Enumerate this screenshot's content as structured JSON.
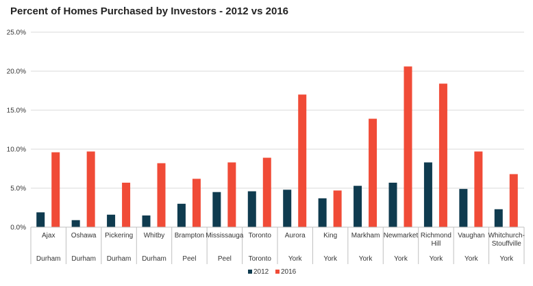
{
  "chart_data": {
    "type": "bar",
    "title": "Percent of Homes Purchased by Investors - 2012 vs 2016",
    "xlabel": "",
    "ylabel": "",
    "ylim": [
      0,
      25
    ],
    "yticks": [
      "0.0%",
      "5.0%",
      "10.0%",
      "15.0%",
      "20.0%",
      "25.0%"
    ],
    "ytick_values": [
      0,
      5,
      10,
      15,
      20,
      25
    ],
    "grid": true,
    "legend_position": "bottom",
    "categories": [
      {
        "lines": [
          "Ajax"
        ],
        "group": "Durham"
      },
      {
        "lines": [
          "Oshawa"
        ],
        "group": "Durham"
      },
      {
        "lines": [
          "Pickering"
        ],
        "group": "Durham"
      },
      {
        "lines": [
          "Whitby"
        ],
        "group": "Durham"
      },
      {
        "lines": [
          "Brampton"
        ],
        "group": "Peel"
      },
      {
        "lines": [
          "Mississauga"
        ],
        "group": "Peel"
      },
      {
        "lines": [
          "Toronto"
        ],
        "group": "Toronto"
      },
      {
        "lines": [
          "Aurora"
        ],
        "group": "York"
      },
      {
        "lines": [
          "King"
        ],
        "group": "York"
      },
      {
        "lines": [
          "Markham"
        ],
        "group": "York"
      },
      {
        "lines": [
          "Newmarket"
        ],
        "group": "York"
      },
      {
        "lines": [
          "Richmond",
          "Hill"
        ],
        "group": "York"
      },
      {
        "lines": [
          "Vaughan"
        ],
        "group": "York"
      },
      {
        "lines": [
          "Whitchurch-",
          "Stouffville"
        ],
        "group": "York"
      }
    ],
    "series": [
      {
        "name": "2012",
        "color": "#0f3b4f",
        "values": [
          1.9,
          0.9,
          1.6,
          1.5,
          3.0,
          4.5,
          4.6,
          4.8,
          3.7,
          5.3,
          5.7,
          8.3,
          4.9,
          2.3
        ]
      },
      {
        "name": "2016",
        "color": "#f04b37",
        "values": [
          9.6,
          9.7,
          5.7,
          8.2,
          6.2,
          8.3,
          8.9,
          17.0,
          4.7,
          13.9,
          20.6,
          18.4,
          9.7,
          6.8
        ]
      }
    ]
  }
}
